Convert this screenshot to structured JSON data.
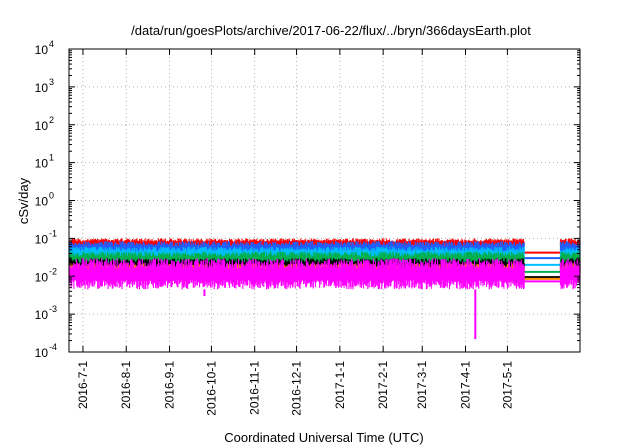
{
  "chart_data": {
    "type": "line",
    "title": "/data/run/goesPlots/archive/2017-06-22/flux/../bryn/366daysEarth.plot",
    "xlabel": "Coordinated Universal Time (UTC)",
    "ylabel": "cSv/day",
    "yscale": "log",
    "ylim": [
      0.0001,
      10000
    ],
    "xlim": [
      "2016-06-21",
      "2017-06-22"
    ],
    "grid": true,
    "legend": "none",
    "y_ticks": [
      {
        "value": 0.0001,
        "base": "10",
        "exp": "-4"
      },
      {
        "value": 0.001,
        "base": "10",
        "exp": "-3"
      },
      {
        "value": 0.01,
        "base": "10",
        "exp": "-2"
      },
      {
        "value": 0.1,
        "base": "10",
        "exp": "-1"
      },
      {
        "value": 1,
        "base": "10",
        "exp": "0"
      },
      {
        "value": 10,
        "base": "10",
        "exp": "1"
      },
      {
        "value": 100,
        "base": "10",
        "exp": "2"
      },
      {
        "value": 1000,
        "base": "10",
        "exp": "3"
      },
      {
        "value": 10000,
        "base": "10",
        "exp": "4"
      }
    ],
    "x_ticks": [
      {
        "date": "2016-07-01",
        "label": "2016-7-1"
      },
      {
        "date": "2016-08-01",
        "label": "2016-8-1"
      },
      {
        "date": "2016-09-01",
        "label": "2016-9-1"
      },
      {
        "date": "2016-10-01",
        "label": "2016-10-1"
      },
      {
        "date": "2016-11-01",
        "label": "2016-11-1"
      },
      {
        "date": "2016-12-01",
        "label": "2016-12-1"
      },
      {
        "date": "2017-01-01",
        "label": "2017-1-1"
      },
      {
        "date": "2017-02-01",
        "label": "2017-2-1"
      },
      {
        "date": "2017-03-01",
        "label": "2017-3-1"
      },
      {
        "date": "2017-04-01",
        "label": "2017-4-1"
      },
      {
        "date": "2017-05-01",
        "label": "2017-5-1"
      }
    ],
    "gap": {
      "start": "2017-05-13",
      "end": "2017-06-08"
    },
    "series": [
      {
        "color": "#ff0000",
        "typical_low": 0.055,
        "typical_high": 0.1,
        "gap_level": 0.042
      },
      {
        "color": "#1f5fff",
        "typical_low": 0.035,
        "typical_high": 0.085,
        "gap_level": 0.03
      },
      {
        "color": "#00c0ff",
        "typical_low": 0.025,
        "typical_high": 0.06,
        "gap_level": 0.02
      },
      {
        "color": "#00b050",
        "typical_low": 0.018,
        "typical_high": 0.045,
        "gap_level": 0.013
      },
      {
        "color": "#000000",
        "typical_low": 0.013,
        "typical_high": 0.03,
        "gap_level": 0.0095
      },
      {
        "color": "#ff8c00",
        "typical_low": 0.009,
        "typical_high": 0.022,
        "gap_level": 0.0085
      },
      {
        "color": "#ff00ff",
        "typical_low": 0.0045,
        "typical_high": 0.03,
        "gap_level": 0.0073
      }
    ],
    "notable_points": [
      {
        "date": "2016-09-26",
        "value": 0.003
      },
      {
        "date": "2017-04-08",
        "value": 0.00022
      }
    ]
  }
}
